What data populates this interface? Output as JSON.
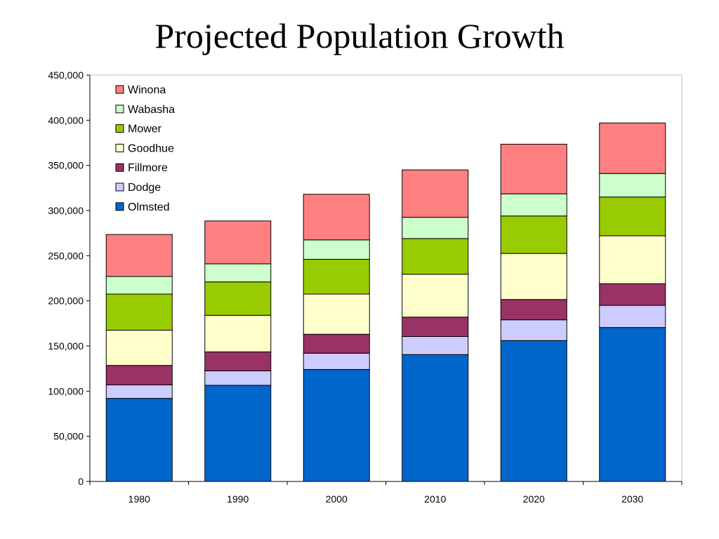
{
  "chart_data": {
    "type": "bar",
    "stacked": true,
    "title": "Projected Population Growth",
    "categories": [
      "1980",
      "1990",
      "2000",
      "2010",
      "2020",
      "2030"
    ],
    "ylim": [
      0,
      450000
    ],
    "y_ticks": [
      0,
      50000,
      100000,
      150000,
      200000,
      250000,
      300000,
      350000,
      400000,
      450000
    ],
    "y_tick_labels": [
      "0",
      "50,000",
      "100,000",
      "150,000",
      "200,000",
      "250,000",
      "300,000",
      "350,000",
      "400,000",
      "450,000"
    ],
    "grid": false,
    "legend_position": "top-left",
    "series": [
      {
        "name": "Olmsted",
        "color": "#0066CC",
        "values": [
          92000,
          106500,
          124000,
          140500,
          156000,
          170500
        ]
      },
      {
        "name": "Dodge",
        "color": "#CCCCFF",
        "values": [
          15000,
          16000,
          18000,
          20000,
          23000,
          24500
        ]
      },
      {
        "name": "Fillmore",
        "color": "#993366",
        "values": [
          21500,
          21000,
          21000,
          21500,
          22500,
          24000
        ]
      },
      {
        "name": "Goodhue",
        "color": "#FFFFCC",
        "values": [
          39000,
          40500,
          44500,
          47500,
          51000,
          53000
        ]
      },
      {
        "name": "Mower",
        "color": "#99CC00",
        "values": [
          40000,
          37000,
          38500,
          39500,
          41500,
          43000
        ]
      },
      {
        "name": "Wabasha",
        "color": "#CCFFCC",
        "values": [
          19500,
          20000,
          21500,
          23500,
          24500,
          26000
        ]
      },
      {
        "name": "Winona",
        "color": "#FF8080",
        "values": [
          46500,
          47500,
          50500,
          52500,
          55000,
          56000
        ]
      }
    ]
  }
}
